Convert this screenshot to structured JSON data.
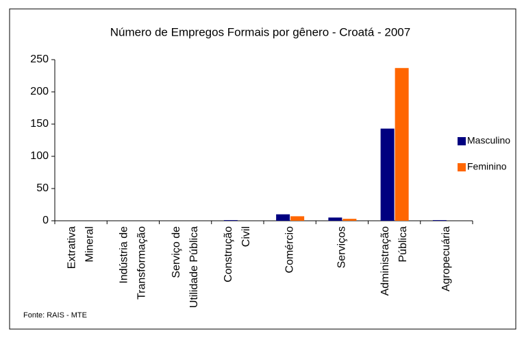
{
  "chart_data": {
    "type": "bar",
    "title": "Número de Empregos Formais por gênero - Croatá - 2007",
    "categories": [
      [
        "Extrativa",
        "Mineral"
      ],
      [
        "Indústria de",
        "Transformação"
      ],
      [
        "Serviço de",
        "Utilidade Pública"
      ],
      [
        "Construção",
        "Civil"
      ],
      [
        "Comércio"
      ],
      [
        "Serviços"
      ],
      [
        "Administração",
        "Pública"
      ],
      [
        "Agropecuária"
      ]
    ],
    "series": [
      {
        "name": "Masculino",
        "color": "#000080",
        "values": [
          0,
          0,
          0,
          1,
          10,
          5,
          143,
          1
        ]
      },
      {
        "name": "Feminino",
        "color": "#ff6600",
        "values": [
          0,
          0,
          0,
          0,
          7,
          3,
          237,
          0
        ]
      }
    ],
    "ylim": [
      0,
      250
    ],
    "yticks": [
      0,
      50,
      100,
      150,
      200,
      250
    ],
    "legend": "right",
    "source": "Fonte: RAIS - MTE"
  }
}
